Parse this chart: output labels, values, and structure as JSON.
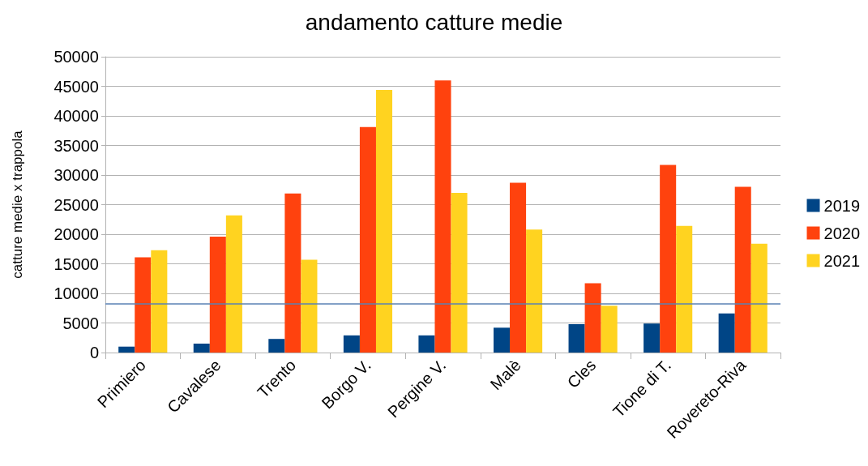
{
  "chart_data": {
    "type": "bar",
    "title": "andamento catture medie",
    "ylabel": "catture medie x trappola",
    "categories": [
      "Primiero",
      "Cavalese",
      "Trento",
      "Borgo V.",
      "Pergine V.",
      "Malè",
      "Cles",
      "Tione di T.",
      "Rovereto-Riva"
    ],
    "series": [
      {
        "name": "2019",
        "color": "#004586",
        "values": [
          1000,
          1500,
          2300,
          2900,
          2900,
          4200,
          4800,
          4900,
          6600
        ]
      },
      {
        "name": "2020",
        "color": "#ff420e",
        "values": [
          16100,
          19600,
          26900,
          38100,
          46000,
          28700,
          11700,
          31700,
          28000
        ]
      },
      {
        "name": "2021",
        "color": "#ffd320",
        "values": [
          17300,
          23200,
          15700,
          44400,
          27000,
          20800,
          7900,
          21400,
          18400
        ]
      }
    ],
    "ylim": [
      0,
      50000
    ],
    "yticks": [
      0,
      5000,
      10000,
      15000,
      20000,
      25000,
      30000,
      35000,
      40000,
      45000,
      50000
    ],
    "grid": "y",
    "legend": "right",
    "ref_lines": [
      {
        "axis": "y",
        "value": 8300,
        "color": "#5a82b4"
      }
    ]
  }
}
